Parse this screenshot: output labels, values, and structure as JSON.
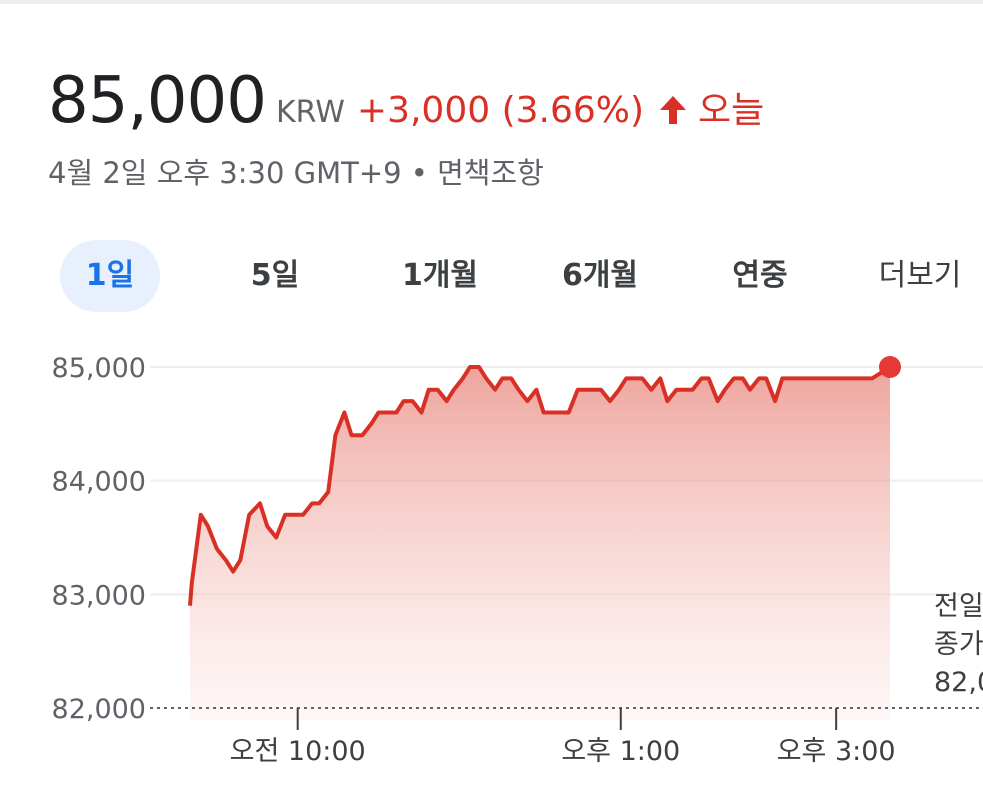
{
  "quote": {
    "price": "85,000",
    "currency": "KRW",
    "change": "+3,000 (3.66%)",
    "period": "오늘",
    "timestamp": "4월 2일 오후 3:30 GMT+9 • 면책조항",
    "accent_color": "#d93025",
    "direction_icon": "arrow-up-icon"
  },
  "tabs": [
    {
      "label": "1일",
      "active": true
    },
    {
      "label": "5일",
      "active": false
    },
    {
      "label": "1개월",
      "active": false
    },
    {
      "label": "6개월",
      "active": false
    },
    {
      "label": "연중",
      "active": false
    },
    {
      "label": "더보기",
      "active": false
    }
  ],
  "previous_close": {
    "line1": "전일",
    "line2": "종가",
    "line3": "82,0"
  },
  "chart_data": {
    "type": "area",
    "title": "",
    "xlabel": "",
    "ylabel": "",
    "ylim": [
      82000,
      85000
    ],
    "yticks": [
      82000,
      83000,
      84000,
      85000
    ],
    "ytick_labels": [
      "82,000",
      "83,000",
      "84,000",
      "85,000"
    ],
    "xticks": [
      "오전 10:00",
      "오후 1:00",
      "오후 3:00"
    ],
    "xlim": [
      "09:00",
      "15:30"
    ],
    "baseline": 82000,
    "grid": true,
    "line_color": "#d93025",
    "series": [
      {
        "x": [
          "09:00",
          "09:01",
          "09:06",
          "09:10",
          "09:15",
          "09:20",
          "09:24",
          "09:28",
          "09:33",
          "09:39",
          "09:43",
          "09:48",
          "09:53",
          "09:58",
          "10:03",
          "10:08",
          "10:12",
          "10:17",
          "10:21",
          "10:26",
          "10:30",
          "10:33",
          "10:36",
          "10:41",
          "10:45",
          "10:50",
          "10:55",
          "10:59",
          "11:04",
          "11:09",
          "11:13",
          "11:18",
          "11:23",
          "11:27",
          "11:32",
          "11:36",
          "11:41",
          "11:45",
          "11:50",
          "11:54",
          "11:59",
          "12:03",
          "12:08",
          "12:13",
          "12:17",
          "12:22",
          "12:26",
          "12:31",
          "12:36",
          "12:40",
          "12:45",
          "12:49",
          "12:54",
          "12:59",
          "13:03",
          "13:08",
          "13:12",
          "13:17",
          "13:22",
          "13:26",
          "13:31",
          "13:35",
          "13:40",
          "13:45",
          "13:49",
          "13:54",
          "13:58",
          "14:03",
          "14:08",
          "14:12",
          "14:17",
          "14:21",
          "14:26",
          "14:30",
          "14:35",
          "14:39",
          "14:44",
          "14:48",
          "14:53",
          "14:58",
          "15:02",
          "15:06",
          "15:11",
          "15:15",
          "15:20",
          "15:30"
        ],
        "values": [
          82900,
          83100,
          83700,
          83600,
          83400,
          83300,
          83200,
          83300,
          83700,
          83800,
          83600,
          83500,
          83700,
          83700,
          83700,
          83800,
          83800,
          83900,
          84400,
          84600,
          84400,
          84400,
          84400,
          84500,
          84600,
          84600,
          84600,
          84700,
          84700,
          84600,
          84800,
          84800,
          84700,
          84800,
          84900,
          85000,
          85000,
          84900,
          84800,
          84900,
          84900,
          84800,
          84700,
          84800,
          84600,
          84600,
          84600,
          84600,
          84800,
          84800,
          84800,
          84800,
          84700,
          84800,
          84900,
          84900,
          84900,
          84800,
          84900,
          84700,
          84800,
          84800,
          84800,
          84900,
          84900,
          84700,
          84800,
          84900,
          84900,
          84800,
          84900,
          84900,
          84700,
          84900,
          84900,
          84900,
          84900,
          84900,
          84900,
          84900,
          84900,
          84900,
          84900,
          84900,
          84900,
          85000
        ]
      }
    ]
  }
}
